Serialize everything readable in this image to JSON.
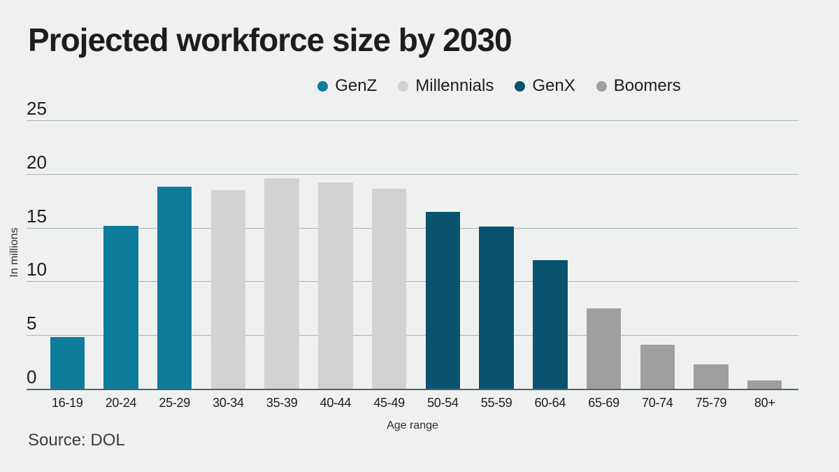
{
  "title": "Projected workforce size by 2030",
  "source": "Source: DOL",
  "colors": {
    "background": "#eff1f1",
    "text": "#1d1d1b",
    "gridline": "#adb1b1",
    "baseline": "#5c6060",
    "genz": "#0e7d9b",
    "millennials": "#d3d1d1",
    "genx": "#0a536e",
    "boomers": "#9f9f9d"
  },
  "legend": [
    {
      "label": "GenZ",
      "color": "#0e7d9b"
    },
    {
      "label": "Millennials",
      "color": "#d3d1d1"
    },
    {
      "label": "GenX",
      "color": "#0a536e"
    },
    {
      "label": "Boomers",
      "color": "#9f9f9d"
    }
  ],
  "chart_data": {
    "type": "bar",
    "title": "Projected workforce size by 2030",
    "xlabel": "Age range",
    "ylabel": "In millions",
    "ylim": [
      0,
      25
    ],
    "yticks": [
      0,
      5,
      10,
      15,
      20,
      25
    ],
    "grid": true,
    "legend_position": "top",
    "categories": [
      "16-19",
      "20-24",
      "25-29",
      "30-34",
      "35-39",
      "40-44",
      "45-49",
      "50-54",
      "55-59",
      "60-64",
      "65-69",
      "70-74",
      "75-79",
      "80+"
    ],
    "values": [
      4.8,
      15.2,
      18.8,
      18.5,
      19.6,
      19.2,
      18.6,
      16.5,
      15.1,
      12.0,
      7.5,
      4.1,
      2.3,
      0.8
    ],
    "groups": [
      "GenZ",
      "GenZ",
      "GenZ",
      "Millennials",
      "Millennials",
      "Millennials",
      "Millennials",
      "GenX",
      "GenX",
      "GenX",
      "Boomers",
      "Boomers",
      "Boomers",
      "Boomers"
    ],
    "series": [
      {
        "name": "GenZ",
        "categories": [
          "16-19",
          "20-24",
          "25-29"
        ],
        "values": [
          4.8,
          15.2,
          18.8
        ]
      },
      {
        "name": "Millennials",
        "categories": [
          "30-34",
          "35-39",
          "40-44",
          "45-49"
        ],
        "values": [
          18.5,
          19.6,
          19.2,
          18.6
        ]
      },
      {
        "name": "GenX",
        "categories": [
          "50-54",
          "55-59",
          "60-64"
        ],
        "values": [
          16.5,
          15.1,
          12.0
        ]
      },
      {
        "name": "Boomers",
        "categories": [
          "65-69",
          "70-74",
          "75-79",
          "80+"
        ],
        "values": [
          7.5,
          4.1,
          2.3,
          0.8
        ]
      }
    ]
  }
}
